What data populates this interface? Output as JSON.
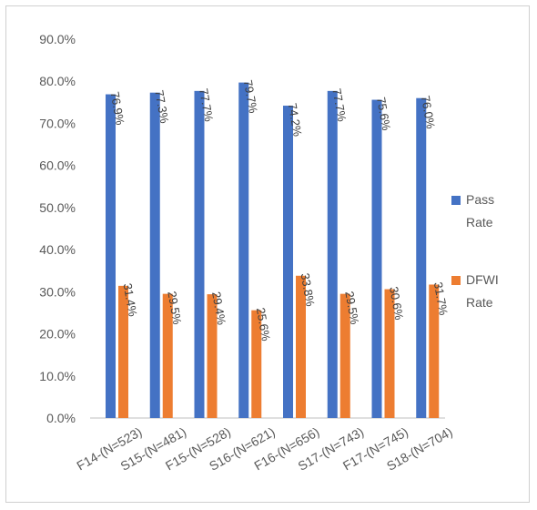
{
  "chart_data": {
    "type": "bar",
    "categories": [
      "F14-(N=523)",
      "S15-(N=481)",
      "F15-(N=528)",
      "S16-(N=621)",
      "F16-(N=656)",
      "S17-(N=743)",
      "F17-(N=745)",
      "S18-(N=704)"
    ],
    "series": [
      {
        "name": "Pass Rate",
        "color": "#4472C4",
        "values": [
          76.9,
          77.3,
          77.7,
          79.7,
          74.2,
          77.7,
          75.6,
          76.0
        ],
        "labels": [
          "76.9%",
          "77.3%",
          "77.7%",
          "79.7%",
          "74.2%",
          "77.7%",
          "75.6%",
          "76.0%"
        ]
      },
      {
        "name": "DFWI Rate",
        "color": "#ED7D31",
        "values": [
          31.4,
          29.5,
          29.4,
          25.6,
          33.8,
          29.5,
          30.6,
          31.7
        ],
        "labels": [
          "31.4%",
          "29.5%",
          "29.4%",
          "25.6%",
          "33.8%",
          "29.5%",
          "30.6%",
          "31.7%"
        ]
      }
    ],
    "yticks": [
      "0.0%",
      "10.0%",
      "20.0%",
      "30.0%",
      "40.0%",
      "50.0%",
      "60.0%",
      "70.0%",
      "80.0%",
      "90.0%"
    ],
    "ylim": [
      0,
      90
    ],
    "grid": false,
    "legend": {
      "position": "right",
      "entries": [
        [
          "Pass",
          "Rate"
        ],
        [
          "DFWI",
          "Rate"
        ]
      ]
    }
  }
}
